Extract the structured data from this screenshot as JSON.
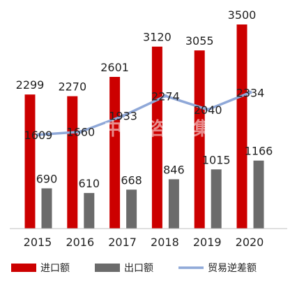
{
  "chart_data": {
    "type": "bar",
    "categories": [
      "2015",
      "2016",
      "2017",
      "2018",
      "2019",
      "2020"
    ],
    "series": [
      {
        "name": "进口额",
        "type": "bar",
        "color": "#cc0000",
        "values": [
          2299,
          2270,
          2601,
          3120,
          3055,
          3500
        ]
      },
      {
        "name": "出口额",
        "type": "bar",
        "color": "#6b6b6b",
        "values": [
          690,
          610,
          668,
          846,
          1015,
          1166
        ]
      },
      {
        "name": "贸易逆差额",
        "type": "line",
        "color": "#8fa8d8",
        "values": [
          1609,
          1660,
          1933,
          2274,
          2040,
          2334
        ]
      }
    ],
    "grid": false,
    "legend": "bottom"
  },
  "watermark": "中文咨询集团"
}
